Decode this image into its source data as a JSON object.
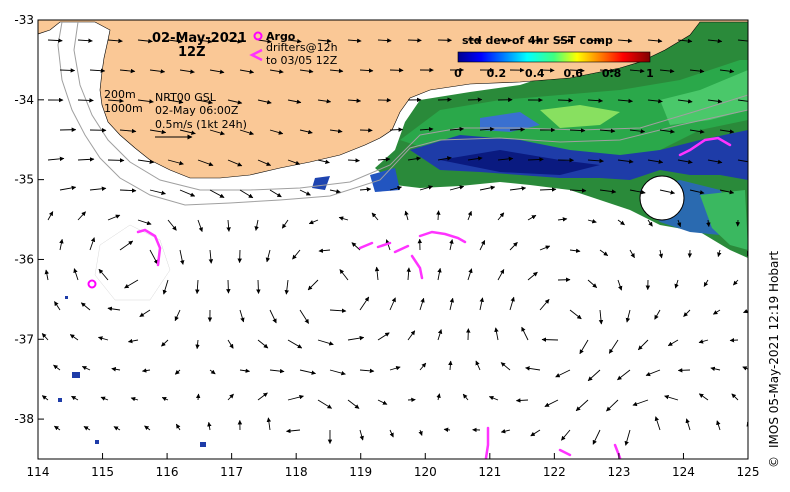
{
  "map": {
    "date": "02-May-2021",
    "hour": "12Z",
    "legend_argo": "Argo",
    "legend_drifters_line1": "drifters@12h",
    "legend_drifters_line2": "to 03/05 12Z",
    "depth_200": "200m",
    "depth_1000": "1000m",
    "product": "NRT00 GSL",
    "product_time": "02-May 06:00Z",
    "scale_label": "0.5m/s (1kt 24h)",
    "colorbar_title": "std dev of 4hr SST comp",
    "colorbar_ticks": [
      "0",
      "0.2",
      "0.4",
      "0.6",
      "0.8",
      "1"
    ],
    "colorbar_range": [
      0,
      1
    ],
    "credit": "IMOS 05-May-2021 12:19 Hobart",
    "copyright_symbol": "©",
    "lon_range": [
      114,
      125
    ],
    "lat_range": [
      -38.5,
      -33
    ],
    "x_ticks": [
      "114",
      "115",
      "116",
      "117",
      "118",
      "119",
      "120",
      "121",
      "122",
      "123",
      "124",
      "125"
    ],
    "y_ticks": [
      "-33",
      "-34",
      "-35",
      "-36",
      "-37",
      "-38"
    ],
    "colors": {
      "land": "#fac896",
      "ocean": "#ffffff",
      "argo": "#ff00ff",
      "drifter": "#ff33ff",
      "isobath": "#a0a0a0"
    }
  }
}
